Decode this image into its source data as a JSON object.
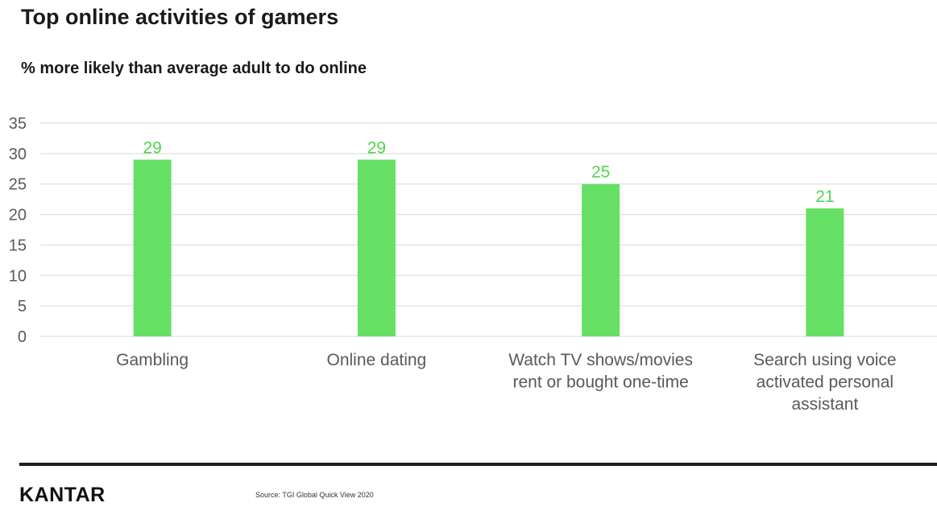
{
  "title": "Top online activities of gamers",
  "subtitle": "% more likely than average adult to do online",
  "source": "Source: TGI Global Quick View 2020",
  "brand": "KANTAR",
  "colors": {
    "bar": "#65e065",
    "label": "#4fd64f",
    "grid": "#d9d9d9",
    "axis_text": "#595959"
  },
  "chart_data": {
    "type": "bar",
    "categories": [
      [
        "Gambling"
      ],
      [
        "Online dating"
      ],
      [
        "Watch TV shows/movies",
        "rent or bought one-time"
      ],
      [
        "Search using voice",
        "activated personal",
        "assistant"
      ]
    ],
    "values": [
      29,
      29,
      25,
      21
    ],
    "ylim": [
      0,
      35
    ],
    "yticks": [
      "0",
      "5",
      "10",
      "15",
      "20",
      "25",
      "30",
      "35"
    ],
    "grid": true,
    "data_labels": true
  }
}
